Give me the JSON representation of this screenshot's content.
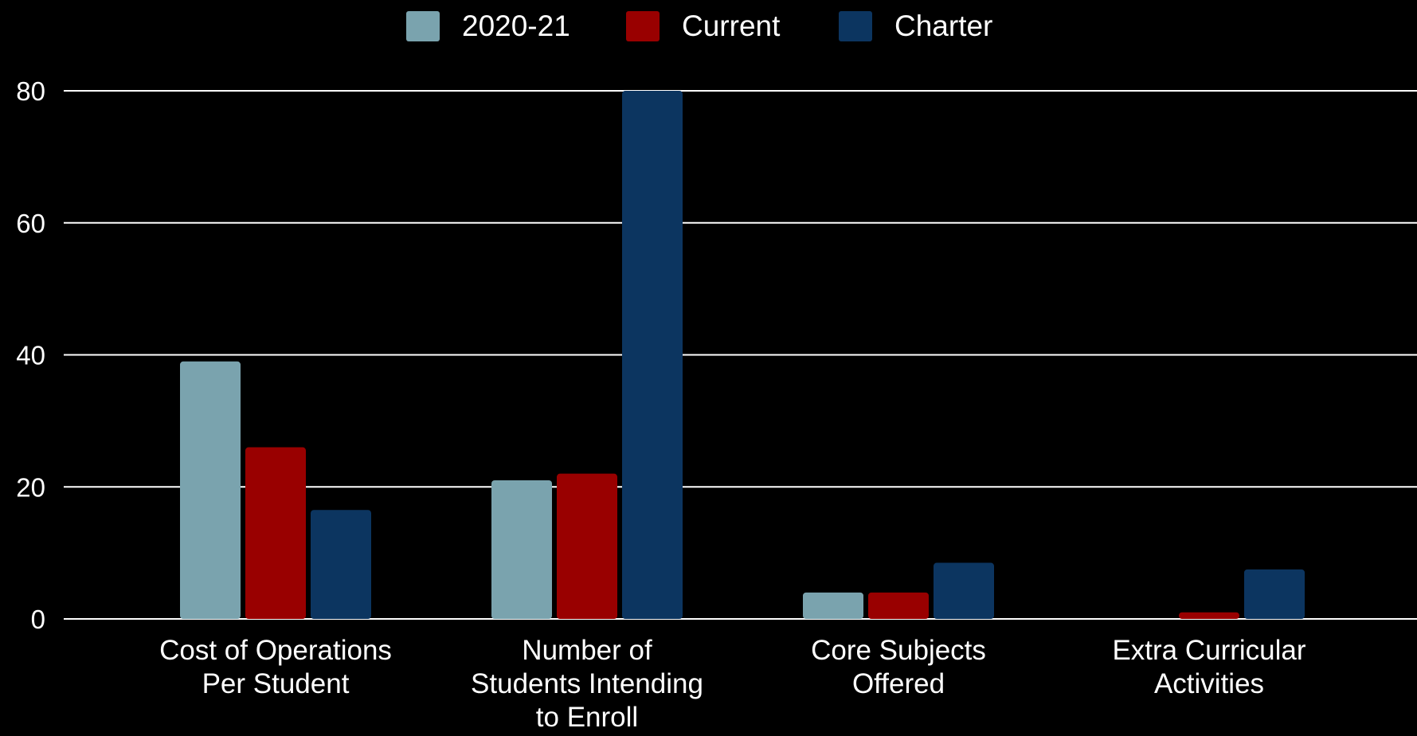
{
  "chart_data": {
    "type": "bar",
    "title": "",
    "xlabel": "",
    "ylabel": "",
    "ylim": [
      0,
      80
    ],
    "yticks": [
      0,
      20,
      40,
      60,
      80
    ],
    "grid": true,
    "legend_position": "top-center",
    "categories": [
      [
        "Cost of Operations",
        "Per Student"
      ],
      [
        "Number of",
        "Students Intending",
        "to Enroll"
      ],
      [
        "Core Subjects",
        "Offered"
      ],
      [
        "Extra Curricular",
        "Activities"
      ]
    ],
    "series": [
      {
        "name": "2020-21",
        "color": "#7aa3ae",
        "values": [
          39,
          21,
          4,
          0
        ]
      },
      {
        "name": "Current",
        "color": "#990000",
        "values": [
          26,
          22,
          4,
          1
        ]
      },
      {
        "name": "Charter",
        "color": "#0c3560",
        "values": [
          16.5,
          80,
          8.5,
          7.5
        ]
      }
    ]
  }
}
